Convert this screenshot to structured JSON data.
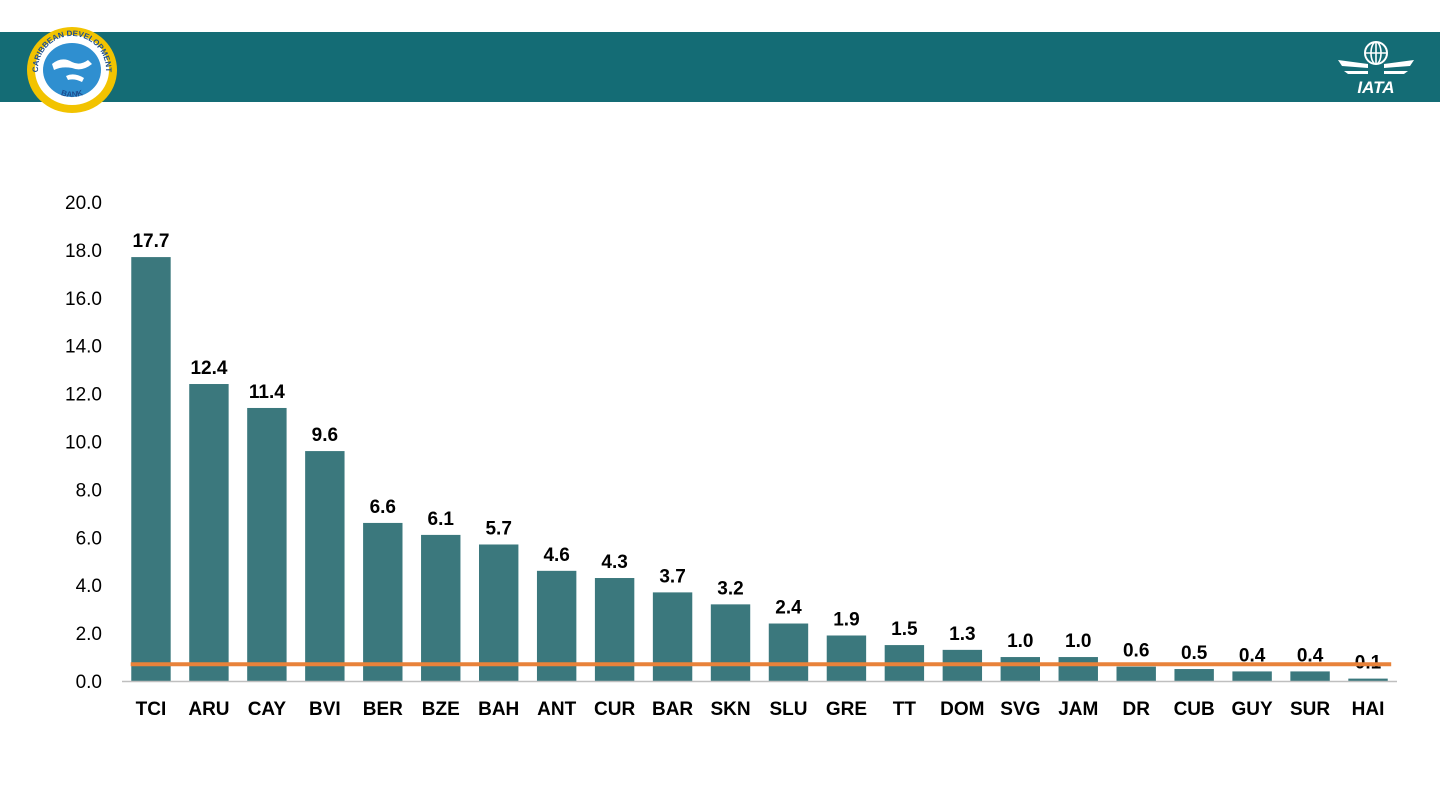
{
  "header": {
    "background": "#146c75",
    "left_logo": {
      "name": "caribbean-development-bank-logo",
      "text_top": "CARIBBEAN DEVELOPMENT",
      "text_bottom": "BANK"
    },
    "right_logo": {
      "name": "iata-logo",
      "text": "IATA"
    }
  },
  "chart_data": {
    "type": "bar",
    "categories": [
      "TCI",
      "ARU",
      "CAY",
      "BVI",
      "BER",
      "BZE",
      "BAH",
      "ANT",
      "CUR",
      "BAR",
      "SKN",
      "SLU",
      "GRE",
      "TT",
      "DOM",
      "SVG",
      "JAM",
      "DR",
      "CUB",
      "GUY",
      "SUR",
      "HAI"
    ],
    "values": [
      17.7,
      12.4,
      11.4,
      9.6,
      6.6,
      6.1,
      5.7,
      4.6,
      4.3,
      3.7,
      3.2,
      2.4,
      1.9,
      1.5,
      1.3,
      1.0,
      1.0,
      0.6,
      0.5,
      0.4,
      0.4,
      0.1
    ],
    "data_labels": [
      "17.7",
      "12.4",
      "11.4",
      "9.6",
      "6.6",
      "6.1",
      "5.7",
      "4.6",
      "4.3",
      "3.7",
      "3.2",
      "2.4",
      "1.9",
      "1.5",
      "1.3",
      "1.0",
      "1.0",
      "0.6",
      "0.5",
      "0.4",
      "0.4",
      "0.1"
    ],
    "yticks": [
      "0.0",
      "2.0",
      "4.0",
      "6.0",
      "8.0",
      "10.0",
      "12.0",
      "14.0",
      "16.0",
      "18.0",
      "20.0"
    ],
    "ylim": [
      0,
      20
    ],
    "reference_line": {
      "value": 0.7
    },
    "title": "",
    "xlabel": "",
    "ylabel": "",
    "grid": false,
    "bar_color": "#3b787d",
    "line_color": "#e8823a"
  }
}
